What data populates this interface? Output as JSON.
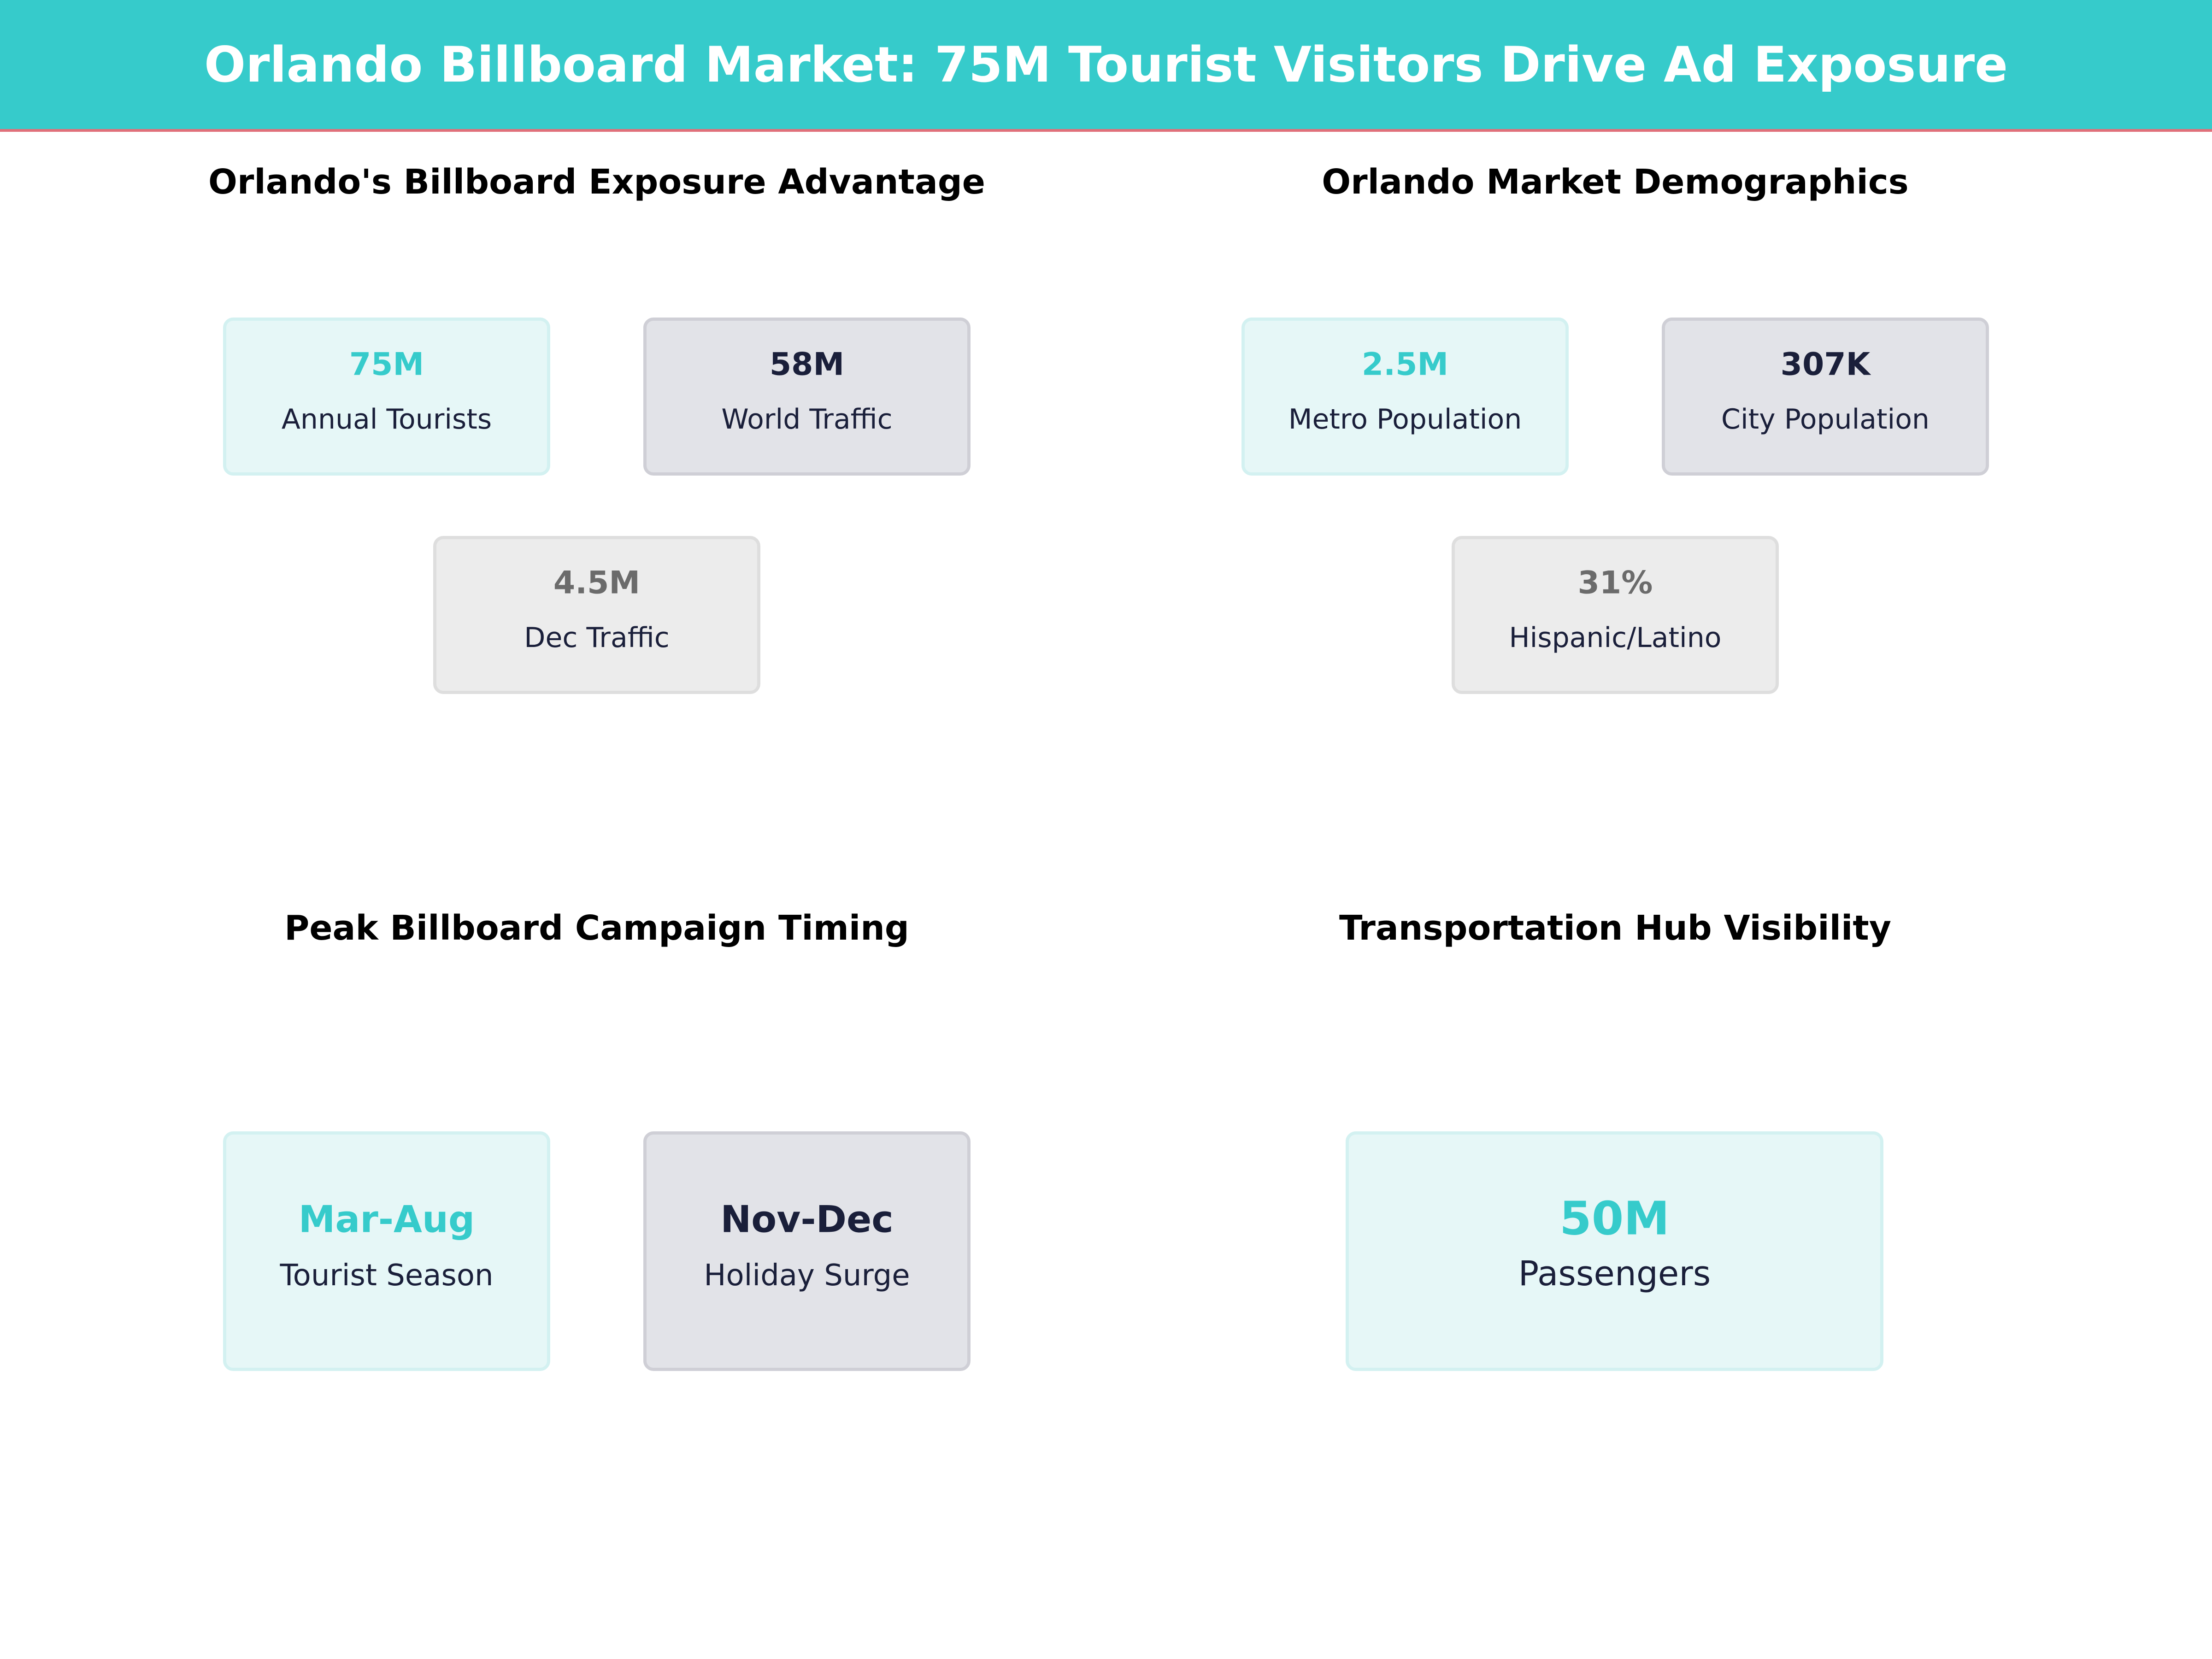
{
  "header": {
    "title": "Orlando Billboard Market: 75M Tourist Visitors Drive Ad Exposure"
  },
  "colors": {
    "accent": "#36CBCB",
    "navy": "#1A1F3A",
    "gray": "#6B6B6B",
    "header_line": "#E0707A"
  },
  "panels": [
    {
      "title": "Orlando's Billboard Exposure Advantage",
      "cards": [
        {
          "value": "75M",
          "label": "Annual Tourists"
        },
        {
          "value": "58M",
          "label": "World Traffic"
        },
        {
          "value": "4.5M",
          "label": "Dec Traffic"
        }
      ]
    },
    {
      "title": "Orlando Market Demographics",
      "cards": [
        {
          "value": "2.5M",
          "label": "Metro Population"
        },
        {
          "value": "307K",
          "label": "City Population"
        },
        {
          "value": "31%",
          "label": "Hispanic/Latino"
        }
      ]
    },
    {
      "title": "Peak Billboard Campaign Timing",
      "cards": [
        {
          "value": "Mar-Aug",
          "label": "Tourist Season"
        },
        {
          "value": "Nov-Dec",
          "label": "Holiday Surge"
        }
      ]
    },
    {
      "title": "Transportation Hub Visibility",
      "cards": [
        {
          "value": "50M",
          "label": "Passengers"
        }
      ]
    }
  ]
}
